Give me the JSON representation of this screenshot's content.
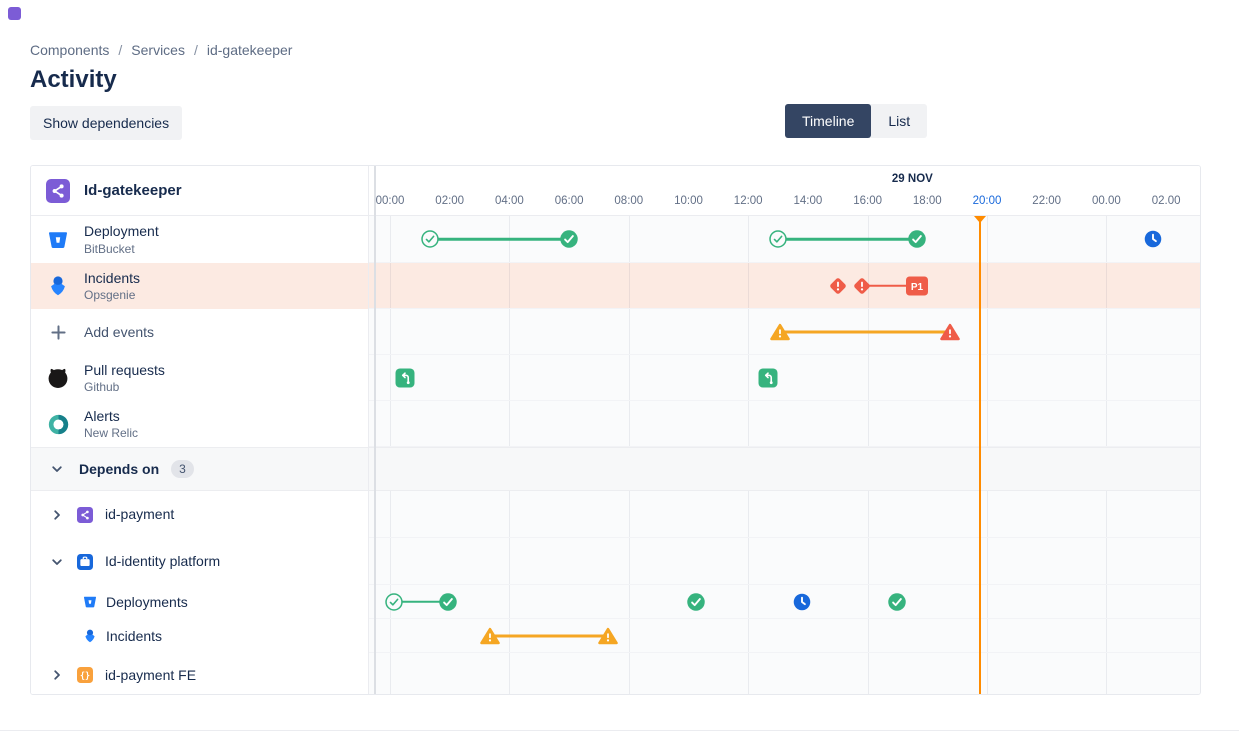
{
  "breadcrumb": {
    "items": [
      "Components",
      "Services",
      "id-gatekeeper"
    ],
    "separator": "/"
  },
  "page_title": "Activity",
  "toolbar": {
    "show_dependencies_label": "Show dependencies"
  },
  "view_toggle": {
    "options": [
      {
        "label": "Timeline",
        "selected": true
      },
      {
        "label": "List",
        "selected": false
      }
    ]
  },
  "timeline": {
    "header": {
      "component_label": "Id-gatekeeper",
      "icon": "service"
    },
    "date_label": "29 NOV",
    "date_center_hours": 17.5,
    "axis_ticks": [
      {
        "label": "00:00"
      },
      {
        "label": "02:00"
      },
      {
        "label": "04:00"
      },
      {
        "label": "06:00"
      },
      {
        "label": "08:00"
      },
      {
        "label": "10:00"
      },
      {
        "label": "12:00"
      },
      {
        "label": "14:00"
      },
      {
        "label": "16:00"
      },
      {
        "label": "18:00"
      },
      {
        "label": "20:00",
        "highlight": true
      },
      {
        "label": "22:00"
      },
      {
        "label": "00.00"
      },
      {
        "label": "02.00"
      }
    ],
    "grid_hours": [
      0,
      4,
      8,
      12,
      16,
      20,
      24
    ],
    "current_time_hours": 19.73,
    "rows": [
      {
        "kind": "event",
        "label": "Deployment",
        "sublabel": "BitBucket",
        "icon": "bitbucket",
        "events": [
          {
            "type": "check-open",
            "h": 1.35
          },
          {
            "type": "check",
            "h": 6
          },
          {
            "type": "check-open",
            "h": 13
          },
          {
            "type": "check",
            "h": 17.65
          },
          {
            "type": "clock",
            "h": 25.55
          }
        ],
        "links": [
          {
            "from": 1.35,
            "to": 6,
            "color": "green"
          },
          {
            "from": 13,
            "to": 17.65,
            "color": "green"
          }
        ]
      },
      {
        "kind": "event",
        "label": "Incidents",
        "sublabel": "Opsgenie",
        "icon": "opsgenie",
        "highlighted": true,
        "events": [
          {
            "type": "diamond",
            "h": 15.0
          },
          {
            "type": "diamond",
            "h": 15.8
          },
          {
            "type": "badge",
            "h": 17.65,
            "label": "P1"
          }
        ],
        "links": [
          {
            "from": 15.8,
            "to": 17.65,
            "color": "red"
          }
        ]
      },
      {
        "kind": "event",
        "label": "Add events",
        "icon": "plus",
        "add_row": true,
        "events": [
          {
            "type": "warn",
            "h": 13.05,
            "color": "amber"
          },
          {
            "type": "warn",
            "h": 18.75,
            "color": "red"
          }
        ],
        "links": [
          {
            "from": 13.05,
            "to": 18.75,
            "color": "amber"
          }
        ]
      },
      {
        "kind": "event",
        "label": "Pull requests",
        "sublabel": "Github",
        "icon": "github",
        "events": [
          {
            "type": "pr",
            "h": 0.5
          },
          {
            "type": "pr",
            "h": 12.65
          }
        ],
        "links": []
      },
      {
        "kind": "event",
        "label": "Alerts",
        "sublabel": "New Relic",
        "icon": "newrelic",
        "events": [],
        "links": []
      },
      {
        "kind": "section",
        "label": "Depends on",
        "badge": "3",
        "chevron": "down"
      },
      {
        "kind": "component",
        "label": "id-payment",
        "icon": "service",
        "chevron": "right",
        "events": [],
        "links": []
      },
      {
        "kind": "component",
        "label": "Id-identity platform",
        "icon": "platform",
        "chevron": "down",
        "events": [],
        "links": []
      },
      {
        "kind": "sub",
        "label": "Deployments",
        "icon": "bitbucket",
        "events": [
          {
            "type": "check-open",
            "h": 0.15
          },
          {
            "type": "check",
            "h": 1.95
          },
          {
            "type": "check",
            "h": 10.25
          },
          {
            "type": "clock",
            "h": 13.8
          },
          {
            "type": "check",
            "h": 17.0
          }
        ],
        "links": [
          {
            "from": 0.15,
            "to": 1.95,
            "color": "green"
          }
        ]
      },
      {
        "kind": "sub",
        "label": "Incidents",
        "icon": "opsgenie",
        "events": [
          {
            "type": "warn",
            "h": 3.35,
            "color": "amber"
          },
          {
            "type": "warn",
            "h": 7.3,
            "color": "amber"
          }
        ],
        "links": [
          {
            "from": 3.35,
            "to": 7.3,
            "color": "amber"
          }
        ]
      },
      {
        "kind": "component",
        "label": "id-payment FE",
        "icon": "braces",
        "chevron": "right",
        "last": true,
        "events": [],
        "links": []
      }
    ],
    "colors": {
      "green": "#36B37E",
      "red": "#EF5C48",
      "amber": "#F5A623",
      "blue": "#1868DB",
      "current_time": "#FF8B00",
      "highlight_row": "#FCEAE2",
      "purple": "#7C5CD6",
      "orange_icon": "#F9A13C"
    }
  }
}
